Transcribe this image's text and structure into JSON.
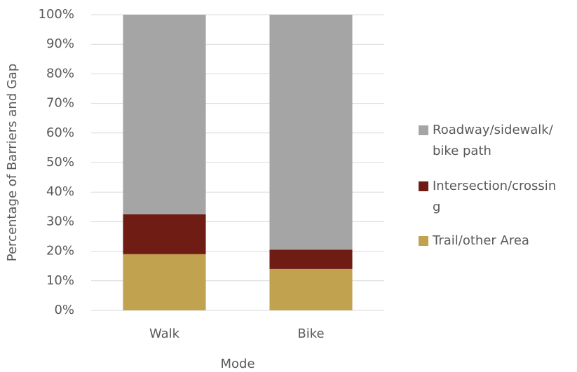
{
  "chart_data": {
    "type": "stacked_bar",
    "x_label": "Mode",
    "y_label": "Percentage of Barriers and Gap",
    "categories": [
      "Walk",
      "Bike"
    ],
    "series": [
      {
        "name": "Trail/other Area",
        "color": "#c0a24f",
        "values": [
          19,
          14
        ]
      },
      {
        "name": "Intersection/crossing",
        "color": "#6f1d14",
        "values": [
          13.5,
          6.5
        ]
      },
      {
        "name": "Roadway/sidewalk/bike path",
        "color": "#a5a5a5",
        "values": [
          67.5,
          79.5
        ]
      }
    ],
    "ylim": [
      0,
      100
    ],
    "yticks": [
      {
        "value": 0,
        "label": "0%"
      },
      {
        "value": 10,
        "label": "10%"
      },
      {
        "value": 20,
        "label": "20%"
      },
      {
        "value": 30,
        "label": "30%"
      },
      {
        "value": 40,
        "label": "40%"
      },
      {
        "value": 50,
        "label": "50%"
      },
      {
        "value": 60,
        "label": "60%"
      },
      {
        "value": 70,
        "label": "70%"
      },
      {
        "value": 80,
        "label": "80%"
      },
      {
        "value": 90,
        "label": "90%"
      },
      {
        "value": 100,
        "label": "100%"
      }
    ],
    "grid": true,
    "legend": "right"
  }
}
